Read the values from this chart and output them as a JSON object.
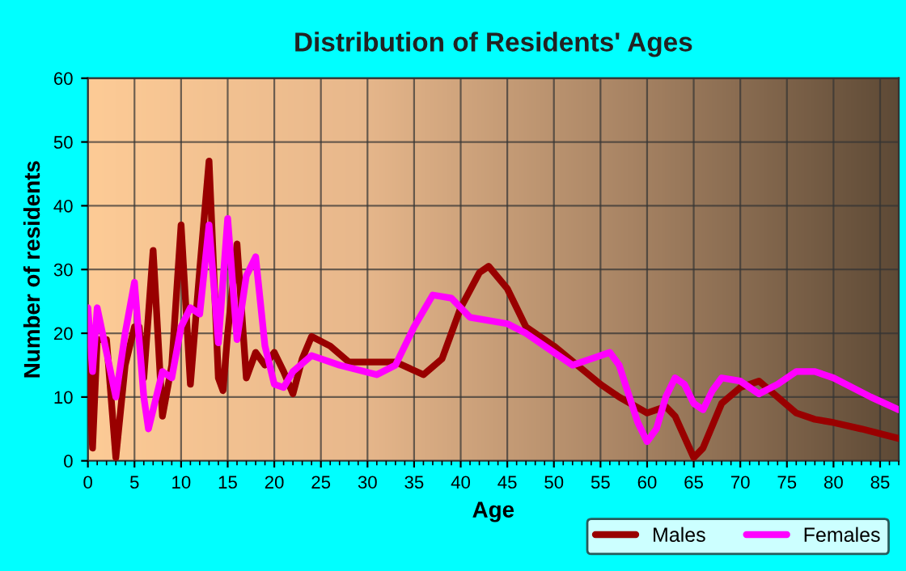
{
  "chart_data": {
    "type": "line",
    "title": "Distribution of Residents' Ages",
    "xlabel": "Age",
    "ylabel": "Number of residents",
    "xlim": [
      0,
      87
    ],
    "xticks": [
      0,
      5,
      10,
      15,
      20,
      25,
      30,
      35,
      40,
      45,
      50,
      55,
      60,
      65,
      70,
      75,
      80,
      85
    ],
    "ylim": [
      0,
      60
    ],
    "yticks": [
      0,
      10,
      20,
      30,
      40,
      50,
      60
    ],
    "grid": true,
    "legend": "bottom",
    "line_style": "solid",
    "marker": "none",
    "series": [
      {
        "name": "Males",
        "color": "#990000",
        "x": [
          0,
          0.5,
          1,
          2,
          3,
          4,
          5,
          5.5,
          6,
          7,
          8,
          9,
          10,
          11,
          12,
          13,
          14,
          14.5,
          15,
          16,
          17,
          18,
          19,
          20,
          21,
          22,
          23,
          24,
          26,
          28,
          30,
          33,
          36,
          38,
          40,
          42,
          43,
          45,
          47,
          50,
          55,
          57,
          60,
          62,
          63,
          65,
          66,
          68,
          70,
          72,
          74,
          76,
          78,
          80,
          83,
          87
        ],
        "values": [
          19,
          2,
          19,
          19,
          0.5,
          15,
          21,
          21,
          13,
          33,
          7,
          15,
          37,
          12,
          30,
          47,
          13,
          11,
          20,
          34,
          13,
          17,
          15,
          17,
          14,
          10.5,
          16,
          19.5,
          18,
          15.5,
          15.5,
          15.5,
          13.5,
          16,
          24,
          29.5,
          30.5,
          27,
          21,
          18,
          12,
          10,
          7.5,
          8.5,
          7,
          0.5,
          2,
          9,
          11.5,
          12.5,
          10,
          7.5,
          6.5,
          6,
          5,
          3.5
        ]
      },
      {
        "name": "Females",
        "color": "#ff00ff",
        "x": [
          0,
          0.5,
          1,
          2,
          3,
          4,
          5,
          6,
          6.5,
          7,
          8,
          9,
          10,
          11,
          12,
          13,
          14,
          15,
          16,
          17,
          18,
          19,
          20,
          21,
          22,
          24,
          27,
          31,
          33,
          35,
          37,
          39,
          41,
          45,
          47,
          50,
          52,
          54,
          56,
          57,
          59,
          60,
          61,
          62,
          63,
          64,
          65,
          66,
          67,
          68,
          70,
          72,
          74,
          76,
          78,
          80,
          84,
          87
        ],
        "values": [
          24,
          14,
          24,
          17,
          10,
          20,
          28,
          10,
          5,
          8,
          14,
          13,
          21,
          24,
          23,
          37,
          18.5,
          38,
          19,
          29,
          32,
          18,
          12,
          11.5,
          14,
          16.5,
          15,
          13.5,
          15,
          21,
          26,
          25.5,
          22.5,
          21.5,
          20,
          17,
          15,
          16,
          17,
          15,
          6,
          3,
          5,
          10,
          13,
          12,
          9,
          8,
          11,
          13,
          12.5,
          10.5,
          12,
          14,
          14,
          13,
          10,
          8
        ]
      }
    ]
  }
}
